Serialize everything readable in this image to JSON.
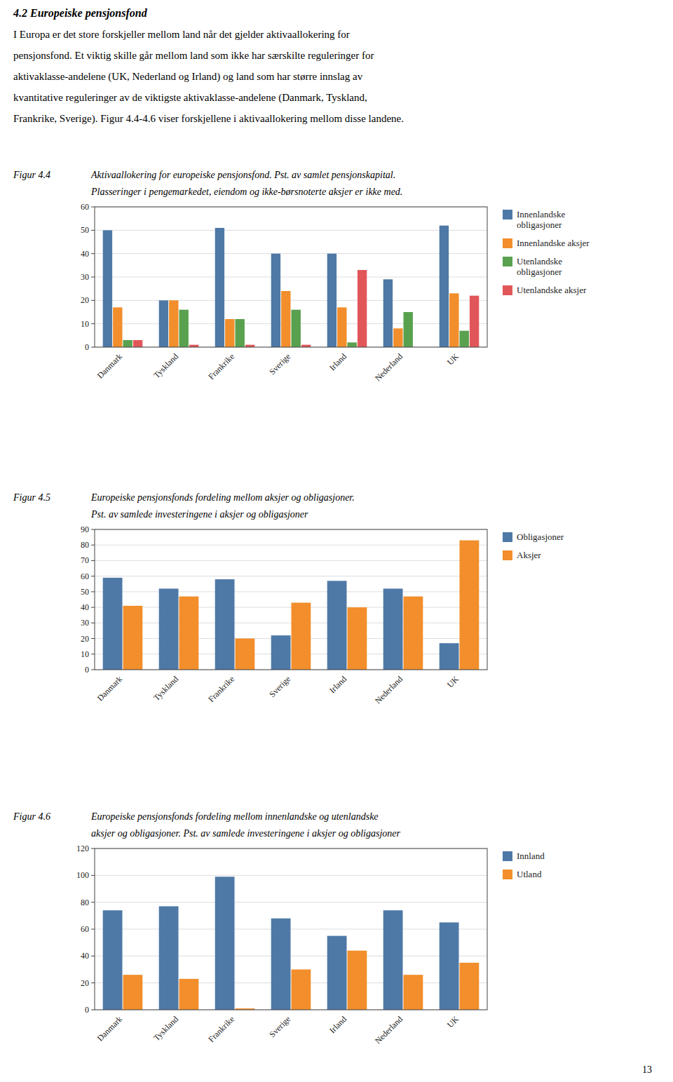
{
  "heading": "4.2 Europeiske pensjonsfond",
  "paragraphs": [
    "I Europa er det store forskjeller mellom land når det gjelder aktivaallokering for",
    "pensjonsfond. Et viktig skille går mellom land som ikke har særskilte reguleringer for",
    "aktivaklasse-andelene (UK, Nederland og Irland) og land som har større innslag av",
    "kvantitative reguleringer av de viktigste aktivaklasse-andelene (Danmark, Tyskland,",
    "Frankrike, Sverige). Figur 4.4-4.6 viser forskjellene i aktivaallokering mellom disse landene."
  ],
  "page_number": "13",
  "chart_data": [
    {
      "type": "bar",
      "title": "Figur 4.4",
      "subtitle": [
        "Aktivaallokering for europeiske pensjonsfond. Pst. av samlet pensjonskapital.",
        "Plasseringer i pengemarkedet, eiendom og ikke-børsnoterte aksjer er ikke med."
      ],
      "categories": [
        "Danmark",
        "Tyskland",
        "Frankrike",
        "Sverige",
        "Irland",
        "Nederland",
        "UK"
      ],
      "series": [
        {
          "name": "Innenlandske\nobligasjoner",
          "color": "#4e79a7",
          "values": [
            50,
            20,
            51,
            40,
            40,
            29,
            52
          ]
        },
        {
          "name": "Innenlandske aksjer",
          "color": "#f28e2b",
          "values": [
            17,
            20,
            12,
            24,
            17,
            8,
            23
          ]
        },
        {
          "name": "Utenlandske\nobligasjoner",
          "color": "#59a14f",
          "values": [
            3,
            16,
            12,
            16,
            2,
            15,
            7
          ]
        },
        {
          "name": "Utenlandske aksjer",
          "color": "#e15759",
          "values": [
            3,
            1,
            1,
            1,
            33,
            0,
            22
          ]
        }
      ],
      "ylim": [
        0,
        60
      ],
      "yticks": [
        0,
        10,
        20,
        30,
        40,
        50,
        60
      ],
      "grid": true,
      "legend": "right"
    },
    {
      "type": "bar",
      "title": "Figur 4.5",
      "subtitle": [
        "Europeiske pensjonsfonds fordeling mellom aksjer og obligasjoner.",
        "Pst. av samlede investeringene i aksjer og obligasjoner"
      ],
      "categories": [
        "Danmark",
        "Tyskland",
        "Frankrike",
        "Sverige",
        "Irland",
        "Nederland",
        "UK"
      ],
      "series": [
        {
          "name": "Obligasjoner",
          "color": "#4e79a7",
          "values": [
            59,
            52,
            58,
            22,
            57,
            52,
            17
          ]
        },
        {
          "name": "Aksjer",
          "color": "#f28e2b",
          "values": [
            41,
            47,
            20,
            43,
            40,
            47,
            83
          ]
        }
      ],
      "ylim": [
        0,
        90
      ],
      "yticks": [
        0,
        10,
        20,
        30,
        40,
        50,
        60,
        70,
        80,
        90
      ],
      "grid": true,
      "legend": "right"
    },
    {
      "type": "bar",
      "title": "Figur 4.6",
      "subtitle": [
        "Europeiske pensjonsfonds fordeling mellom innenlandske og utenlandske",
        "aksjer og obligasjoner. Pst. av samlede investeringene i aksjer og obligasjoner"
      ],
      "categories": [
        "Danmark",
        "Tyskland",
        "Frankrike",
        "Sverige",
        "Irland",
        "Nederland",
        "UK"
      ],
      "series": [
        {
          "name": "Innland",
          "color": "#4e79a7",
          "values": [
            74,
            77,
            99,
            68,
            55,
            74,
            65
          ]
        },
        {
          "name": "Utland",
          "color": "#f28e2b",
          "values": [
            26,
            23,
            1,
            30,
            44,
            26,
            35
          ]
        }
      ],
      "ylim": [
        0,
        120
      ],
      "yticks": [
        0,
        20,
        40,
        60,
        80,
        100,
        120
      ],
      "grid": true,
      "legend": "right"
    }
  ]
}
